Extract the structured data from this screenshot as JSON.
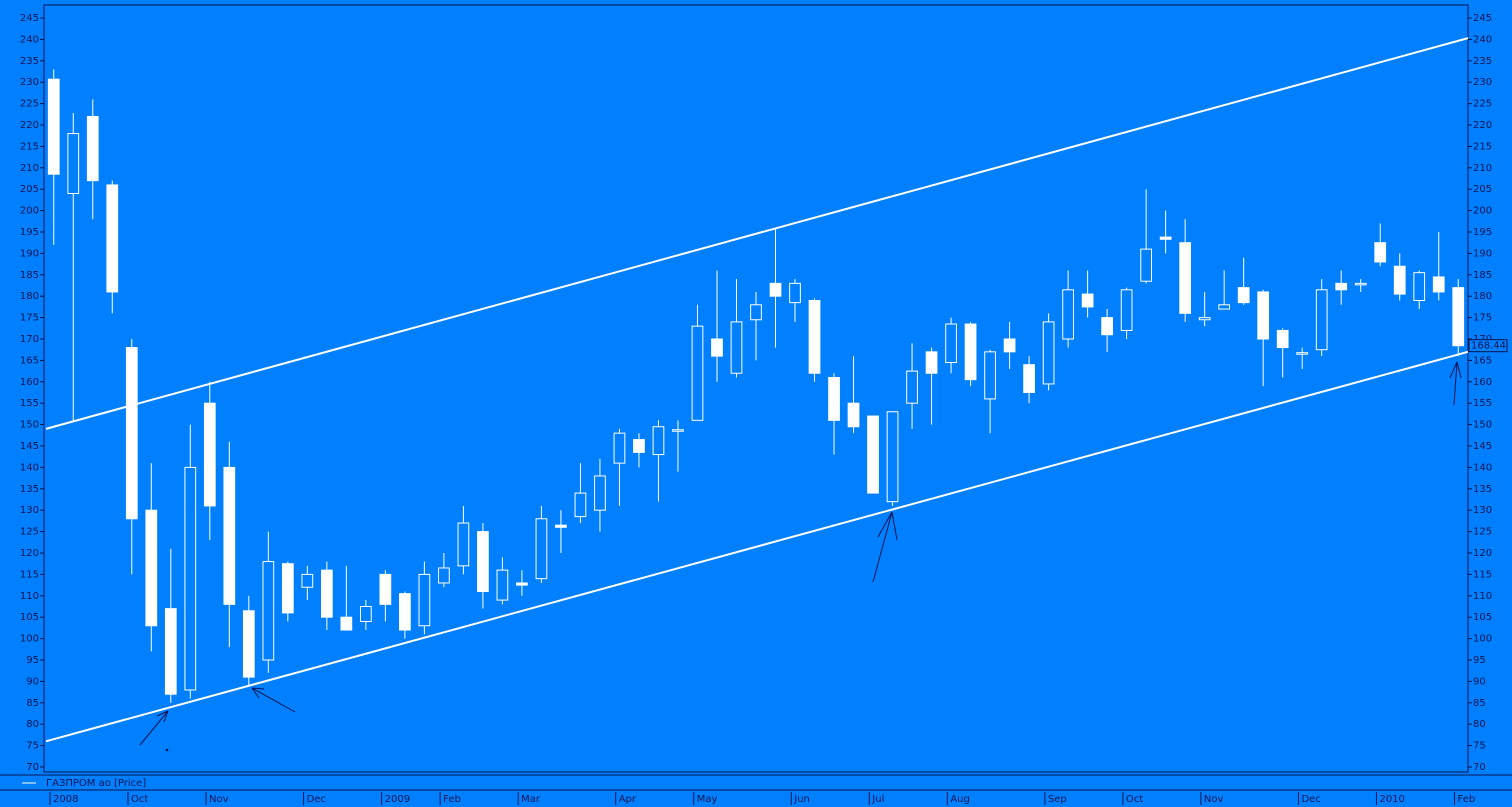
{
  "chart_data": {
    "type": "candlestick",
    "series_name": "ГАЗПРОМ ао [Price]",
    "color": "#ffffff",
    "background": "#0080ff",
    "categories": [
      "2008",
      null,
      null,
      null,
      "Oct",
      null,
      null,
      null,
      "Nov",
      null,
      null,
      null,
      null,
      "Dec",
      null,
      null,
      null,
      "2009",
      null,
      null,
      "Feb",
      null,
      null,
      null,
      "Mar",
      null,
      null,
      null,
      null,
      "Apr",
      null,
      null,
      null,
      "May",
      null,
      null,
      null,
      null,
      "Jun",
      null,
      null,
      null,
      "Jul",
      null,
      null,
      null,
      "Aug",
      null,
      null,
      null,
      null,
      "Sep",
      null,
      null,
      null,
      "Oct",
      null,
      null,
      null,
      "Nov",
      null,
      null,
      null,
      null,
      "Dec",
      null,
      null,
      null,
      "2010",
      null,
      null,
      null,
      "Feb"
    ],
    "open": [
      230.7,
      204,
      222,
      206,
      168,
      130,
      107,
      88,
      155,
      140,
      106.5,
      95,
      117.5,
      112,
      116,
      105,
      104,
      115,
      110.5,
      103,
      113,
      117,
      125,
      109,
      113,
      114,
      126.5,
      128.5,
      130,
      141,
      146.5,
      143,
      148.5,
      151,
      170,
      162,
      174.5,
      183,
      178.5,
      179,
      161,
      155,
      152,
      132,
      155,
      167,
      164.5,
      173.5,
      156,
      170,
      164,
      159.5,
      170,
      180.5,
      175,
      172,
      183.5,
      193.8,
      192.5,
      174.5,
      177,
      182,
      181,
      172,
      166.5,
      167.5,
      183,
      182.8,
      192.5,
      187,
      179,
      184.5,
      182
    ],
    "high": [
      233,
      222.8,
      226,
      207,
      170,
      141,
      121,
      150,
      160,
      146,
      110,
      125,
      118,
      117,
      118,
      117,
      109,
      116,
      111,
      118,
      120,
      131,
      127,
      119,
      116,
      131,
      130,
      141,
      142,
      149,
      148,
      151,
      151,
      178,
      186,
      184,
      181,
      196,
      184,
      179.5,
      162,
      166,
      152,
      153,
      169,
      168,
      175,
      174,
      167.5,
      174,
      166,
      176,
      186,
      186,
      177,
      182,
      205,
      200,
      198,
      181,
      186,
      189,
      181.5,
      172.5,
      168,
      184,
      186,
      184,
      197,
      190,
      186,
      195,
      184
    ],
    "low": [
      192,
      150.6,
      198,
      176,
      115,
      97,
      85,
      86,
      123,
      98,
      89,
      92,
      104,
      109,
      102,
      102,
      102,
      104,
      100,
      101,
      112,
      115,
      107,
      108,
      110,
      113,
      120,
      127,
      125,
      131,
      140,
      132,
      139,
      151,
      160,
      161,
      165,
      168,
      174,
      160,
      143,
      148,
      134,
      131,
      149,
      150,
      162,
      159,
      148,
      163,
      155,
      158,
      168,
      175,
      167,
      170,
      183,
      190,
      174,
      173,
      177,
      178,
      159,
      161,
      163,
      166,
      178,
      181,
      187,
      179,
      177,
      179,
      166
    ],
    "close": [
      208.5,
      218,
      207,
      181,
      128,
      103,
      87,
      140,
      131,
      108,
      91,
      118,
      106,
      115,
      105,
      102,
      107.5,
      108,
      102,
      115,
      116.5,
      127,
      111,
      116,
      112.5,
      128,
      126,
      134,
      138,
      148,
      143.5,
      149.5,
      148.8,
      173,
      166,
      174,
      178,
      180,
      183,
      162,
      151,
      149.5,
      134,
      153,
      162.5,
      162,
      173.5,
      160.5,
      167,
      167,
      157.5,
      174,
      181.5,
      177.5,
      171,
      181.5,
      191,
      193.3,
      176,
      175,
      178,
      178.5,
      170,
      168,
      166.8,
      181.5,
      181.5,
      183,
      188,
      180.5,
      185.5,
      181,
      168.44
    ],
    "trend_lines": [
      {
        "x": [
          -0.4,
          72.5
        ],
        "y": [
          149,
          240.3
        ]
      },
      {
        "x": [
          -0.4,
          72.5
        ],
        "y": [
          76,
          167
        ]
      }
    ],
    "xlim": [
      -0.5,
      72.5
    ],
    "ylim": [
      68.83,
      248.04
    ],
    "yticks": [
      70,
      75,
      80,
      85,
      90,
      95,
      100,
      105,
      110,
      115,
      120,
      125,
      130,
      135,
      140,
      145,
      150,
      155,
      160,
      165,
      170,
      175,
      180,
      185,
      190,
      195,
      200,
      205,
      210,
      215,
      220,
      225,
      230,
      235,
      240,
      245
    ]
  }
}
